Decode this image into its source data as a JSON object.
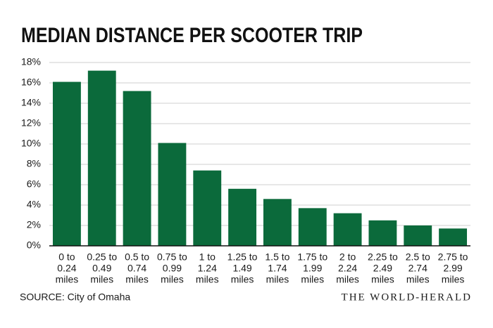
{
  "chart_data": {
    "type": "bar",
    "title": "MEDIAN DISTANCE PER SCOOTER TRIP",
    "categories": [
      [
        "0 to",
        "0.24",
        "miles"
      ],
      [
        "0.25 to",
        "0.49",
        "miles"
      ],
      [
        "0.5 to",
        "0.74",
        "miles"
      ],
      [
        "0.75 to",
        "0.99",
        "miles"
      ],
      [
        "1 to",
        "1.24",
        "miles"
      ],
      [
        "1.25 to",
        "1.49",
        "miles"
      ],
      [
        "1.5 to",
        "1.74",
        "miles"
      ],
      [
        "1.75 to",
        "1.99",
        "miles"
      ],
      [
        "2 to",
        "2.24",
        "miles"
      ],
      [
        "2.25 to",
        "2.49",
        "miles"
      ],
      [
        "2.5 to",
        "2.74",
        "miles"
      ],
      [
        "2.75 to",
        "2.99",
        "miles"
      ]
    ],
    "values": [
      16.1,
      17.2,
      15.2,
      10.1,
      7.4,
      5.6,
      4.6,
      3.7,
      3.2,
      2.5,
      2.0,
      1.7
    ],
    "color": "#0b6a3b",
    "ylim": [
      0,
      18
    ],
    "yticks": [
      {
        "value": 0,
        "label": "0%"
      },
      {
        "value": 2,
        "label": "2%"
      },
      {
        "value": 4,
        "label": "4%"
      },
      {
        "value": 6,
        "label": "6%"
      },
      {
        "value": 8,
        "label": "8%"
      },
      {
        "value": 10,
        "label": "10%"
      },
      {
        "value": 12,
        "label": "12%"
      },
      {
        "value": 14,
        "label": "14%"
      },
      {
        "value": 16,
        "label": "16%"
      },
      {
        "value": 18,
        "label": "18%"
      }
    ],
    "grid": true,
    "source": "SOURCE: City of Omaha",
    "credit": "THE WORLD-HERALD"
  }
}
